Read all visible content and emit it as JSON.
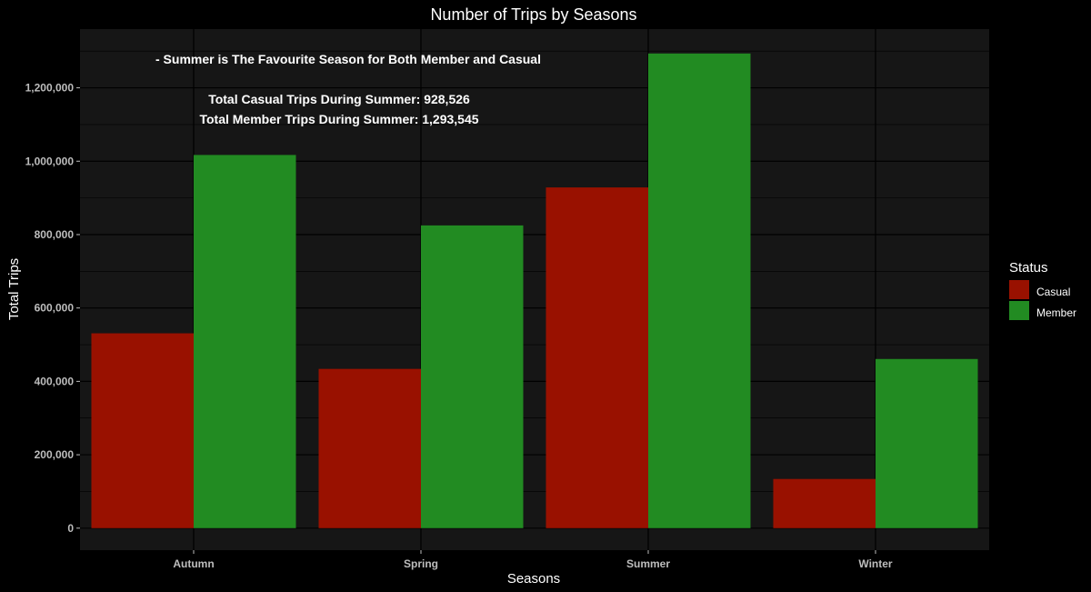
{
  "chart_data": {
    "type": "bar",
    "title": "Number of Trips by Seasons",
    "xlabel": "Seasons",
    "ylabel": "Total Trips",
    "categories": [
      "Autumn",
      "Spring",
      "Summer",
      "Winter"
    ],
    "series": [
      {
        "name": "Casual",
        "color": "#991100",
        "values": [
          531000,
          434000,
          928526,
          134000
        ]
      },
      {
        "name": "Member",
        "color": "#228B22",
        "values": [
          1017000,
          825000,
          1293545,
          461000
        ]
      }
    ],
    "ylim": [
      -60000,
      1360000
    ],
    "yticks": [
      0,
      200000,
      400000,
      600000,
      800000,
      1000000,
      1200000
    ],
    "ytick_labels": [
      "0",
      "200,000",
      "400,000",
      "600,000",
      "800,000",
      "1,000,000",
      "1,200,000"
    ],
    "grid": true,
    "legend": {
      "title": "Status",
      "position": "right"
    },
    "annotations": [
      "- Summer is The Favourite Season for Both Member and Casual",
      "Total Casual Trips During Summer: 928,526",
      "Total Member Trips During Summer: 1,293,545"
    ],
    "colors": {
      "background": "#000000",
      "panel": "#161616",
      "grid": "#000000"
    }
  }
}
